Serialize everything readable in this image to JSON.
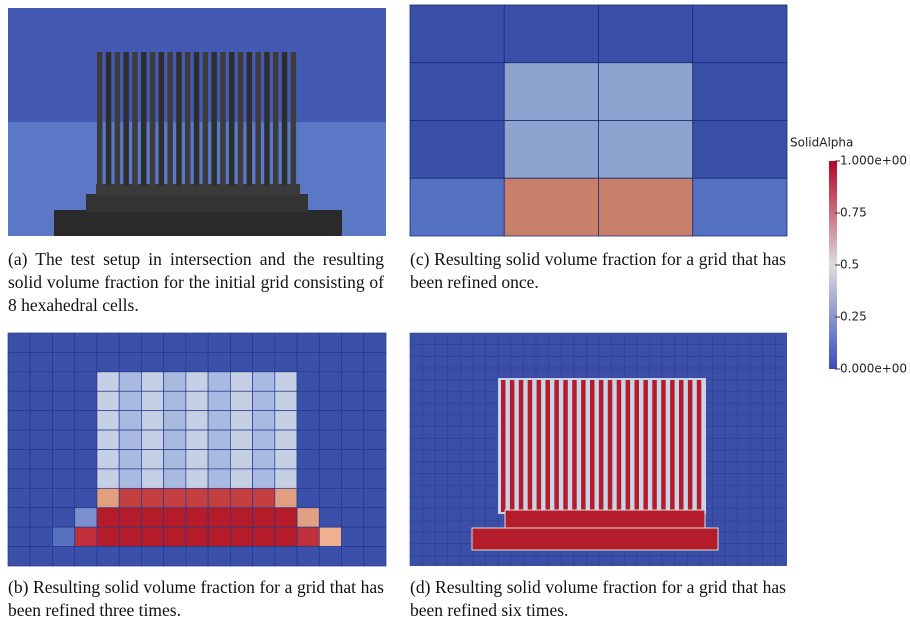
{
  "panels": [
    {
      "label": "(a)",
      "caption": "The test setup in intersection and the resulting solid volume fraction for the initial grid consisting of 8 hexahedral cells."
    },
    {
      "label": "(c)",
      "caption": "Resulting solid volume fraction for a grid that has been refined once."
    },
    {
      "label": "(b)",
      "caption": "Resulting solid volume fraction for a grid that has been refined three times."
    },
    {
      "label": "(d)",
      "caption": "Resulting solid volume fraction for a grid that has been refined six times."
    }
  ],
  "colorbar": {
    "title": "SolidAlpha",
    "ticks": [
      {
        "value": 1,
        "label": "1.000e+00"
      },
      0.75,
      0.5,
      0.25,
      {
        "value": 0,
        "label": "0.000e+00"
      }
    ]
  }
}
